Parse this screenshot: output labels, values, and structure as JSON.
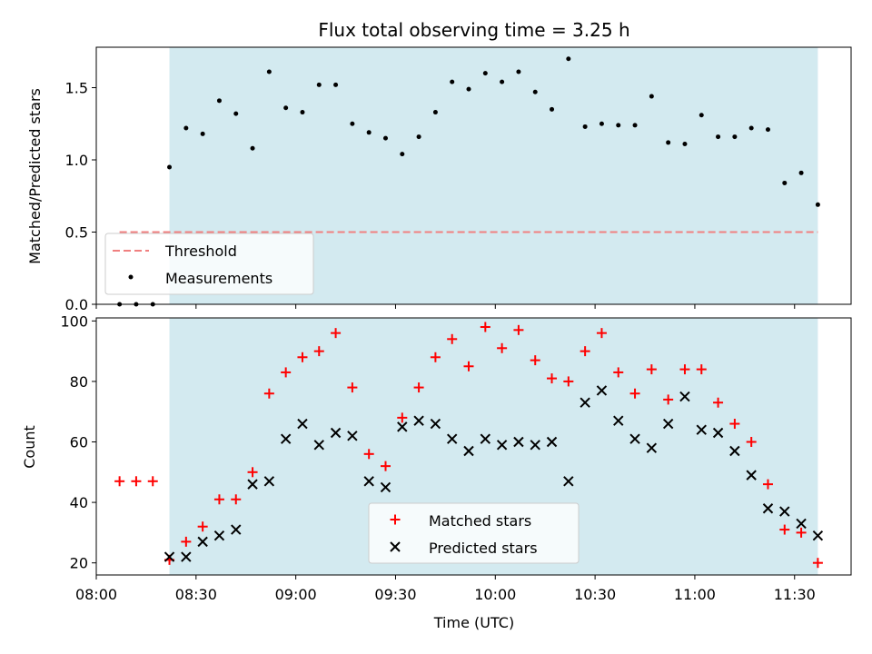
{
  "colors": {
    "shade": "#d3eaf0",
    "threshold": "#f08080",
    "matched": "#ff0000",
    "predicted": "#000000",
    "measurement": "#000000"
  },
  "chart_data": [
    {
      "type": "scatter",
      "title": "Flux total observing time = 3.25 h",
      "xlabel": "",
      "ylabel": "Matched/Predicted stars",
      "ylim": [
        0,
        1.78
      ],
      "yticks": [
        0.0,
        0.5,
        1.0,
        1.5
      ],
      "ytick_labels": [
        "0.0",
        "0.5",
        "1.0",
        "1.5"
      ],
      "shaded_span": [
        "08:22",
        "11:37"
      ],
      "threshold": {
        "name": "Threshold",
        "value": 0.5,
        "x_range": [
          "08:07",
          "11:37"
        ]
      },
      "legend_position": "lower left",
      "series": [
        {
          "name": "Measurements",
          "x": [
            "08:07",
            "08:12",
            "08:17",
            "08:22",
            "08:27",
            "08:32",
            "08:37",
            "08:42",
            "08:47",
            "08:52",
            "08:57",
            "09:02",
            "09:07",
            "09:12",
            "09:17",
            "09:22",
            "09:27",
            "09:32",
            "09:37",
            "09:42",
            "09:47",
            "09:52",
            "09:57",
            "10:02",
            "10:07",
            "10:12",
            "10:17",
            "10:22",
            "10:27",
            "10:32",
            "10:37",
            "10:42",
            "10:47",
            "10:52",
            "10:57",
            "11:02",
            "11:07",
            "11:12",
            "11:17",
            "11:22",
            "11:27",
            "11:32",
            "11:37"
          ],
          "values": [
            0.0,
            0.0,
            0.0,
            0.95,
            1.22,
            1.18,
            1.41,
            1.32,
            1.08,
            1.61,
            1.36,
            1.33,
            1.52,
            1.52,
            1.25,
            1.19,
            1.15,
            1.04,
            1.16,
            1.33,
            1.54,
            1.49,
            1.6,
            1.54,
            1.61,
            1.47,
            1.35,
            1.7,
            1.23,
            1.25,
            1.24,
            1.24,
            1.44,
            1.12,
            1.11,
            1.31,
            1.16,
            1.16,
            1.22,
            1.21,
            0.84,
            0.91,
            0.69
          ]
        }
      ]
    },
    {
      "type": "scatter",
      "title": "",
      "xlabel": "Time (UTC)",
      "ylabel": "Count",
      "ylim": [
        16,
        101
      ],
      "xlim": [
        "08:00",
        "11:47"
      ],
      "yticks": [
        20,
        40,
        60,
        80,
        100
      ],
      "ytick_labels": [
        "20",
        "40",
        "60",
        "80",
        "100"
      ],
      "xticks": [
        "08:00",
        "08:30",
        "09:00",
        "09:30",
        "10:00",
        "10:30",
        "11:00",
        "11:30"
      ],
      "shaded_span": [
        "08:22",
        "11:37"
      ],
      "legend_position": "lower center",
      "series": [
        {
          "name": "Matched stars",
          "marker": "+",
          "x": [
            "08:07",
            "08:12",
            "08:17",
            "08:22",
            "08:27",
            "08:32",
            "08:37",
            "08:42",
            "08:47",
            "08:52",
            "08:57",
            "09:02",
            "09:07",
            "09:12",
            "09:17",
            "09:22",
            "09:27",
            "09:32",
            "09:37",
            "09:42",
            "09:47",
            "09:52",
            "09:57",
            "10:02",
            "10:07",
            "10:12",
            "10:17",
            "10:22",
            "10:27",
            "10:32",
            "10:37",
            "10:42",
            "10:47",
            "10:52",
            "10:57",
            "11:02",
            "11:07",
            "11:12",
            "11:17",
            "11:22",
            "11:27",
            "11:32",
            "11:37"
          ],
          "values": [
            47,
            47,
            47,
            21,
            27,
            32,
            41,
            41,
            50,
            76,
            83,
            88,
            90,
            96,
            78,
            56,
            52,
            68,
            78,
            88,
            94,
            85,
            98,
            91,
            97,
            87,
            81,
            80,
            90,
            96,
            83,
            76,
            84,
            74,
            84,
            84,
            73,
            66,
            60,
            46,
            31,
            30,
            20
          ]
        },
        {
          "name": "Predicted stars",
          "marker": "x",
          "x": [
            "08:22",
            "08:27",
            "08:32",
            "08:37",
            "08:42",
            "08:47",
            "08:52",
            "08:57",
            "09:02",
            "09:07",
            "09:12",
            "09:17",
            "09:22",
            "09:27",
            "09:32",
            "09:37",
            "09:42",
            "09:47",
            "09:52",
            "09:57",
            "10:02",
            "10:07",
            "10:12",
            "10:17",
            "10:22",
            "10:27",
            "10:32",
            "10:37",
            "10:42",
            "10:47",
            "10:52",
            "10:57",
            "11:02",
            "11:07",
            "11:12",
            "11:17",
            "11:22",
            "11:27",
            "11:32",
            "11:37"
          ],
          "values": [
            22,
            22,
            27,
            29,
            31,
            46,
            47,
            61,
            66,
            59,
            63,
            62,
            47,
            45,
            65,
            67,
            66,
            61,
            57,
            61,
            59,
            60,
            59,
            60,
            47,
            73,
            77,
            67,
            61,
            58,
            66,
            75,
            64,
            63,
            57,
            49,
            38,
            37,
            33,
            29
          ]
        }
      ]
    }
  ]
}
